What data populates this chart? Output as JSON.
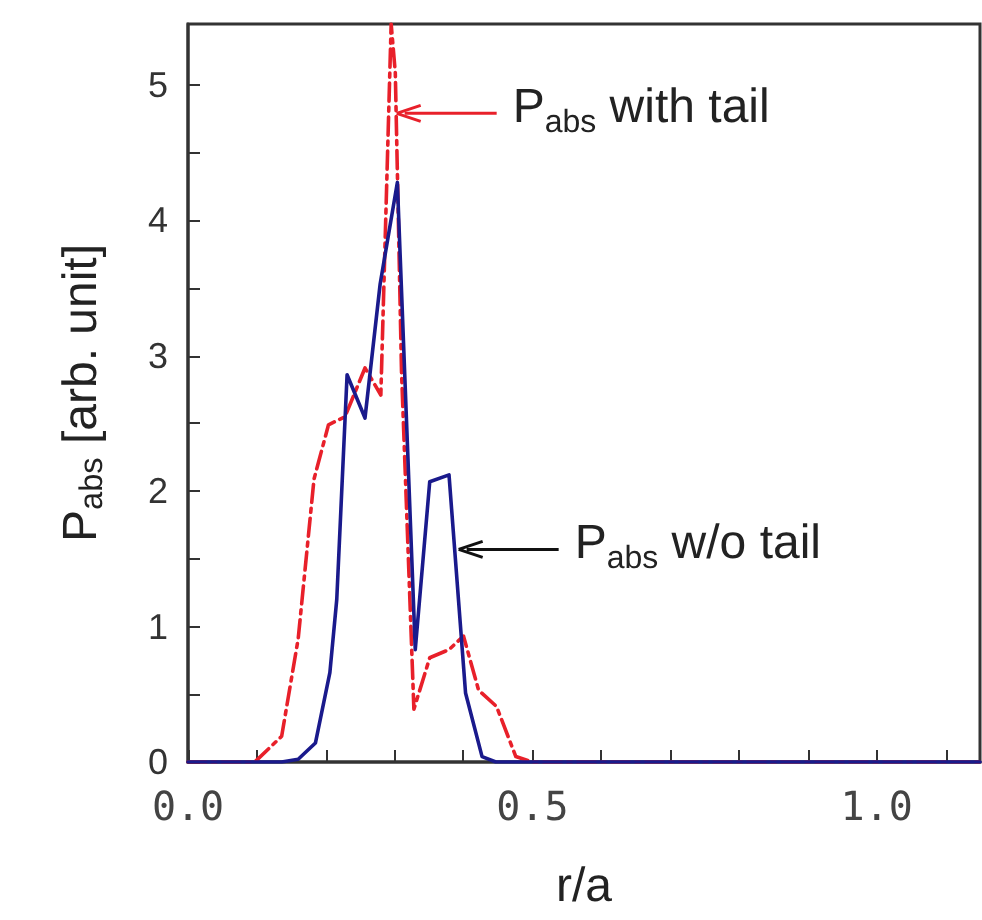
{
  "chart_data": {
    "type": "line",
    "xlabel": "r/a",
    "ylabel": "P$_{abs}$ [arb. unit]",
    "xlim": [
      0,
      1.15
    ],
    "xticks": [
      {
        "value": 0,
        "label": "0.0"
      },
      {
        "value": 0.1,
        "label": null
      },
      {
        "value": 0.2,
        "label": null
      },
      {
        "value": 0.3,
        "label": null
      },
      {
        "value": 0.4,
        "label": null
      },
      {
        "value": 0.5,
        "label": "0.5"
      },
      {
        "value": 0.6,
        "label": null
      },
      {
        "value": 0.7,
        "label": null
      },
      {
        "value": 0.8,
        "label": null
      },
      {
        "value": 0.9,
        "label": null
      },
      {
        "value": 1.0,
        "label": "1.0"
      },
      {
        "value": 1.1,
        "label": null
      }
    ],
    "ylim": [
      0,
      5.45
    ],
    "yticks": [
      0,
      {
        "value": 0.5,
        "label": null
      },
      1,
      {
        "value": 1.5,
        "label": null
      },
      2,
      {
        "value": 2.5,
        "label": null
      },
      3,
      {
        "value": 3.5,
        "label": null
      },
      4,
      {
        "value": 4.5,
        "label": null
      },
      5
    ],
    "grid": false,
    "marker": "none",
    "series": [
      {
        "color": "#e8202a",
        "line_style": "dashed",
        "x": [
          0,
          0.097,
          0.136,
          0.16,
          0.183,
          0.204,
          0.228,
          0.257,
          0.28,
          0.295,
          0.301,
          0.31,
          0.328,
          0.351,
          0.379,
          0.4,
          0.422,
          0.448,
          0.476,
          0.5,
          1.15
        ],
        "values": [
          0,
          0,
          0.19,
          0.91,
          2.09,
          2.49,
          2.55,
          2.91,
          2.71,
          5.45,
          5.09,
          2.89,
          0.39,
          0.77,
          0.83,
          0.93,
          0.53,
          0.41,
          0.04,
          0,
          0
        ]
      },
      {
        "color": "#1a1a8c",
        "line_style": "solid",
        "x": [
          0,
          0.136,
          0.16,
          0.185,
          0.206,
          0.216,
          0.231,
          0.257,
          0.279,
          0.304,
          0.33,
          0.351,
          0.379,
          0.403,
          0.427,
          0.447,
          1.15
        ],
        "values": [
          0,
          0,
          0.02,
          0.14,
          0.66,
          1.2,
          2.86,
          2.54,
          3.53,
          4.28,
          0.83,
          2.07,
          2.12,
          0.51,
          0.04,
          0,
          0
        ]
      }
    ],
    "annotations": [
      {
        "text": "P$_{abs}$ with tail",
        "x": 0.303,
        "y": 4.79
      },
      {
        "text": "P$_{abs}$ w/o tail",
        "x": 0.393,
        "y": 1.57
      }
    ]
  }
}
